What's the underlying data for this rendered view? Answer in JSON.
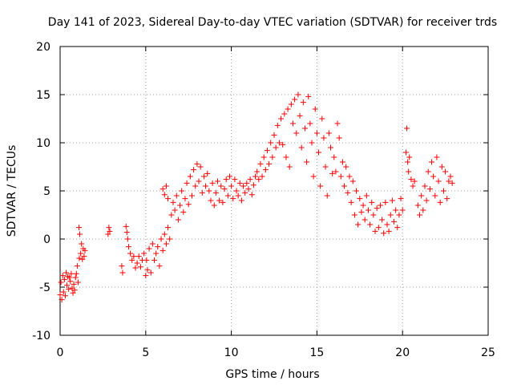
{
  "chart_data": {
    "type": "scatter",
    "title": "Day 141 of 2023, Sidereal Day-to-day VTEC variation (SDTVAR) for receiver trds",
    "xlabel": "GPS time / hours",
    "ylabel": "SDTVAR / TECUs",
    "xlim": [
      0,
      25
    ],
    "ylim": [
      -10,
      20
    ],
    "xticks": [
      0,
      5,
      10,
      15,
      20,
      25
    ],
    "yticks": [
      -10,
      -5,
      0,
      5,
      10,
      15,
      20
    ],
    "grid": true,
    "marker": "+",
    "color": "#ff0000",
    "series": [
      {
        "name": "SDTVAR",
        "points": [
          [
            0.0,
            -5.8
          ],
          [
            0.05,
            -4.5
          ],
          [
            0.1,
            -6.3
          ],
          [
            0.15,
            -3.8
          ],
          [
            0.2,
            -5.5
          ],
          [
            0.25,
            -4.2
          ],
          [
            0.3,
            -5.9
          ],
          [
            0.35,
            -3.5
          ],
          [
            0.4,
            -4.8
          ],
          [
            0.45,
            -3.9
          ],
          [
            0.5,
            -5.2
          ],
          [
            0.55,
            -4.0
          ],
          [
            0.6,
            -4.4
          ],
          [
            0.65,
            -3.6
          ],
          [
            0.7,
            -5.1
          ],
          [
            0.75,
            -5.6
          ],
          [
            0.8,
            -4.7
          ],
          [
            0.85,
            -5.3
          ],
          [
            0.9,
            -4.0
          ],
          [
            0.95,
            -3.6
          ],
          [
            1.0,
            -2.8
          ],
          [
            1.05,
            -4.5
          ],
          [
            1.1,
            1.2
          ],
          [
            1.12,
            -2.0
          ],
          [
            1.15,
            0.5
          ],
          [
            1.2,
            -1.5
          ],
          [
            1.25,
            -0.5
          ],
          [
            1.3,
            -2.1
          ],
          [
            1.35,
            -1.0
          ],
          [
            1.4,
            -1.8
          ],
          [
            1.45,
            -1.2
          ],
          [
            2.8,
            0.5
          ],
          [
            2.85,
            1.2
          ],
          [
            2.9,
            0.8
          ],
          [
            3.6,
            -2.8
          ],
          [
            3.65,
            -3.5
          ],
          [
            3.85,
            1.3
          ],
          [
            3.9,
            0.7
          ],
          [
            3.95,
            0.0
          ],
          [
            4.0,
            -0.8
          ],
          [
            4.1,
            -1.5
          ],
          [
            4.2,
            -2.2
          ],
          [
            4.3,
            -1.8
          ],
          [
            4.4,
            -3.0
          ],
          [
            4.5,
            -2.5
          ],
          [
            4.6,
            -1.8
          ],
          [
            4.7,
            -2.9
          ],
          [
            4.8,
            -2.2
          ],
          [
            4.9,
            -1.5
          ],
          [
            5.0,
            -3.8
          ],
          [
            5.05,
            -2.2
          ],
          [
            5.1,
            -3.2
          ],
          [
            5.2,
            -1.0
          ],
          [
            5.3,
            -3.5
          ],
          [
            5.4,
            -0.5
          ],
          [
            5.5,
            -2.2
          ],
          [
            5.6,
            -1.5
          ],
          [
            5.7,
            -0.8
          ],
          [
            5.8,
            -2.8
          ],
          [
            5.9,
            0.0
          ],
          [
            6.0,
            -1.2
          ],
          [
            6.1,
            0.5
          ],
          [
            6.2,
            -0.5
          ],
          [
            6.3,
            1.2
          ],
          [
            6.4,
            0.0
          ],
          [
            6.0,
            5.2
          ],
          [
            6.1,
            4.6
          ],
          [
            6.2,
            5.5
          ],
          [
            6.3,
            4.2
          ],
          [
            6.5,
            2.5
          ],
          [
            6.6,
            3.8
          ],
          [
            6.7,
            3.0
          ],
          [
            6.8,
            4.5
          ],
          [
            6.9,
            2.0
          ],
          [
            7.0,
            3.5
          ],
          [
            7.1,
            5.0
          ],
          [
            7.2,
            2.8
          ],
          [
            7.3,
            4.2
          ],
          [
            7.4,
            5.8
          ],
          [
            7.5,
            3.6
          ],
          [
            7.6,
            6.5
          ],
          [
            7.7,
            4.5
          ],
          [
            7.8,
            7.2
          ],
          [
            7.9,
            5.5
          ],
          [
            8.0,
            7.8
          ],
          [
            8.1,
            6.0
          ],
          [
            8.2,
            7.5
          ],
          [
            8.3,
            4.8
          ],
          [
            8.4,
            6.5
          ],
          [
            8.5,
            5.5
          ],
          [
            8.6,
            6.8
          ],
          [
            8.7,
            5.0
          ],
          [
            8.8,
            4.0
          ],
          [
            8.9,
            5.8
          ],
          [
            9.0,
            3.5
          ],
          [
            9.1,
            4.8
          ],
          [
            9.2,
            6.0
          ],
          [
            9.3,
            4.0
          ],
          [
            9.4,
            5.5
          ],
          [
            9.5,
            3.8
          ],
          [
            9.6,
            5.2
          ],
          [
            9.7,
            6.2
          ],
          [
            9.8,
            4.5
          ],
          [
            9.9,
            6.5
          ],
          [
            10.0,
            5.5
          ],
          [
            10.1,
            4.2
          ],
          [
            10.2,
            6.2
          ],
          [
            10.3,
            5.0
          ],
          [
            10.4,
            4.5
          ],
          [
            10.5,
            5.8
          ],
          [
            10.6,
            4.0
          ],
          [
            10.7,
            5.5
          ],
          [
            10.8,
            4.8
          ],
          [
            10.9,
            5.8
          ],
          [
            11.0,
            5.2
          ],
          [
            11.1,
            6.2
          ],
          [
            11.2,
            4.6
          ],
          [
            11.3,
            5.6
          ],
          [
            11.4,
            6.5
          ],
          [
            11.5,
            7.0
          ],
          [
            11.6,
            6.2
          ],
          [
            11.7,
            7.8
          ],
          [
            11.8,
            6.5
          ],
          [
            11.9,
            8.5
          ],
          [
            12.0,
            7.2
          ],
          [
            12.1,
            9.2
          ],
          [
            12.2,
            7.8
          ],
          [
            12.3,
            10.0
          ],
          [
            12.4,
            8.5
          ],
          [
            12.5,
            10.8
          ],
          [
            12.6,
            9.5
          ],
          [
            12.7,
            11.8
          ],
          [
            12.8,
            10.0
          ],
          [
            12.9,
            12.5
          ],
          [
            13.0,
            9.8
          ],
          [
            13.1,
            13.0
          ],
          [
            13.2,
            8.5
          ],
          [
            13.3,
            13.5
          ],
          [
            13.4,
            7.5
          ],
          [
            13.5,
            14.0
          ],
          [
            13.6,
            12.0
          ],
          [
            13.7,
            14.5
          ],
          [
            13.8,
            11.0
          ],
          [
            13.9,
            15.0
          ],
          [
            14.0,
            12.8
          ],
          [
            14.1,
            9.5
          ],
          [
            14.2,
            14.2
          ],
          [
            14.3,
            11.5
          ],
          [
            14.4,
            8.0
          ],
          [
            14.5,
            14.8
          ],
          [
            14.6,
            12.0
          ],
          [
            14.7,
            10.0
          ],
          [
            14.8,
            6.5
          ],
          [
            14.9,
            13.5
          ],
          [
            15.0,
            11.0
          ],
          [
            15.1,
            9.0
          ],
          [
            15.2,
            5.5
          ],
          [
            15.3,
            12.5
          ],
          [
            15.4,
            10.5
          ],
          [
            15.5,
            7.5
          ],
          [
            15.6,
            4.5
          ],
          [
            15.7,
            11.0
          ],
          [
            15.8,
            9.5
          ],
          [
            15.9,
            6.8
          ],
          [
            16.0,
            8.5
          ],
          [
            16.1,
            7.0
          ],
          [
            16.2,
            12.0
          ],
          [
            16.3,
            10.5
          ],
          [
            16.4,
            6.5
          ],
          [
            16.5,
            8.0
          ],
          [
            16.6,
            5.5
          ],
          [
            16.7,
            7.5
          ],
          [
            16.8,
            4.8
          ],
          [
            16.9,
            6.5
          ],
          [
            17.0,
            3.8
          ],
          [
            17.1,
            6.0
          ],
          [
            17.2,
            2.5
          ],
          [
            17.3,
            5.0
          ],
          [
            17.4,
            1.5
          ],
          [
            17.5,
            4.2
          ],
          [
            17.6,
            2.8
          ],
          [
            17.7,
            3.5
          ],
          [
            17.8,
            2.0
          ],
          [
            17.9,
            4.5
          ],
          [
            18.0,
            3.0
          ],
          [
            18.1,
            1.5
          ],
          [
            18.2,
            3.8
          ],
          [
            18.3,
            2.5
          ],
          [
            18.4,
            0.8
          ],
          [
            18.5,
            3.2
          ],
          [
            18.6,
            1.2
          ],
          [
            18.7,
            3.5
          ],
          [
            18.8,
            2.0
          ],
          [
            18.9,
            0.6
          ],
          [
            19.0,
            3.8
          ],
          [
            19.1,
            1.5
          ],
          [
            19.2,
            0.8
          ],
          [
            19.3,
            2.5
          ],
          [
            19.4,
            4.0
          ],
          [
            19.5,
            1.8
          ],
          [
            19.6,
            3.0
          ],
          [
            19.7,
            1.2
          ],
          [
            19.8,
            2.5
          ],
          [
            19.9,
            4.2
          ],
          [
            20.0,
            3.0
          ],
          [
            20.2,
            9.0
          ],
          [
            20.25,
            11.5
          ],
          [
            20.3,
            8.0
          ],
          [
            20.35,
            7.0
          ],
          [
            20.4,
            8.5
          ],
          [
            20.5,
            6.2
          ],
          [
            20.6,
            5.5
          ],
          [
            20.7,
            6.0
          ],
          [
            20.9,
            3.5
          ],
          [
            21.0,
            2.5
          ],
          [
            21.1,
            4.5
          ],
          [
            21.2,
            3.0
          ],
          [
            21.3,
            5.5
          ],
          [
            21.4,
            4.0
          ],
          [
            21.5,
            7.0
          ],
          [
            21.6,
            5.2
          ],
          [
            21.7,
            8.0
          ],
          [
            21.8,
            6.5
          ],
          [
            21.9,
            4.5
          ],
          [
            22.0,
            8.5
          ],
          [
            22.1,
            6.0
          ],
          [
            22.2,
            3.8
          ],
          [
            22.3,
            7.5
          ],
          [
            22.4,
            5.0
          ],
          [
            22.5,
            7.0
          ],
          [
            22.6,
            4.2
          ],
          [
            22.7,
            6.0
          ],
          [
            22.8,
            6.5
          ],
          [
            22.9,
            5.8
          ]
        ]
      }
    ]
  }
}
